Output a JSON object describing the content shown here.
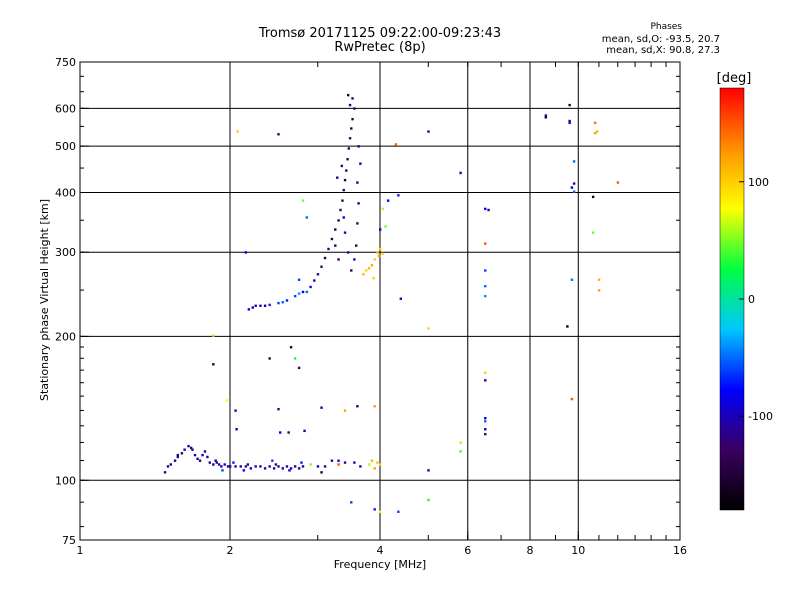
{
  "header": {
    "title_line1": "Tromsø 20171125 09:22:00-09:23:43",
    "title_line2": "RwPretec (8p)",
    "phase_title": "Phases",
    "phase_o": "mean, sd,O: -93.5, 20.7",
    "phase_x": "mean, sd,X:  90.8, 27.3"
  },
  "chart_data": {
    "type": "scatter",
    "title": "Tromsø 20171125 09:22:00-09:23:43",
    "subtitle": "RwPretec (8p)",
    "xlabel": "Frequency [MHz]",
    "ylabel": "Stationary phase Virtual Height [km]",
    "x_scale": "log",
    "y_scale": "log",
    "xlim": [
      1,
      16
    ],
    "ylim": [
      75,
      750
    ],
    "x_ticks": [
      1,
      2,
      4,
      6,
      8,
      10,
      16
    ],
    "x_tick_labels": [
      "1",
      "2",
      "4",
      "6",
      "8",
      "10",
      "16"
    ],
    "x_grid": [
      2,
      4,
      6,
      8,
      10
    ],
    "y_ticks": [
      75,
      100,
      200,
      300,
      400,
      500,
      600,
      750
    ],
    "y_tick_labels": [
      "75",
      "100",
      "200",
      "300",
      "400",
      "500",
      "600",
      "750"
    ],
    "y_grid": [
      100,
      200,
      300,
      400,
      500,
      600
    ],
    "grid": true,
    "colorbar": {
      "label": "[deg]",
      "range": [
        -180,
        180
      ],
      "ticks": [
        -100,
        0,
        100
      ],
      "tick_labels": [
        "-100",
        "0",
        "100"
      ],
      "colormap": "rainbow (black-purple-blue-cyan-green-yellow-orange-red)",
      "stops": [
        "#000000",
        "#3a0060",
        "#0000ff",
        "#00c8ff",
        "#00ff40",
        "#ffff00",
        "#ff9000",
        "#ff0000"
      ]
    },
    "points": [
      [
        1.48,
        104,
        -105
      ],
      [
        1.5,
        107,
        -110
      ],
      [
        1.52,
        108,
        -105
      ],
      [
        1.55,
        110,
        -110
      ],
      [
        1.57,
        112,
        -105
      ],
      [
        1.6,
        114,
        -110
      ],
      [
        1.62,
        116,
        -105
      ],
      [
        1.65,
        118,
        -100
      ],
      [
        1.68,
        116,
        -110
      ],
      [
        1.7,
        113,
        -105
      ],
      [
        1.72,
        111,
        -110
      ],
      [
        1.74,
        110,
        -105
      ],
      [
        1.76,
        113,
        -100
      ],
      [
        1.78,
        115,
        -110
      ],
      [
        1.8,
        112,
        -105
      ],
      [
        1.82,
        109,
        -110
      ],
      [
        1.85,
        108,
        -105
      ],
      [
        1.88,
        109,
        -100
      ],
      [
        1.9,
        108,
        -110
      ],
      [
        1.92,
        107,
        -105
      ],
      [
        1.95,
        108,
        -100
      ],
      [
        1.98,
        107,
        -110
      ],
      [
        2.0,
        107,
        -105
      ],
      [
        2.05,
        107,
        -100
      ],
      [
        2.1,
        107,
        -110
      ],
      [
        2.15,
        107,
        -105
      ],
      [
        2.2,
        106,
        -100
      ],
      [
        2.25,
        107,
        -110
      ],
      [
        2.3,
        107,
        -105
      ],
      [
        2.35,
        106,
        -100
      ],
      [
        2.4,
        107,
        -110
      ],
      [
        2.45,
        106,
        -105
      ],
      [
        2.5,
        107,
        -100
      ],
      [
        2.55,
        106,
        -110
      ],
      [
        2.6,
        107,
        -105
      ],
      [
        2.65,
        106,
        -100
      ],
      [
        2.7,
        107,
        -110
      ],
      [
        2.75,
        106,
        -105
      ],
      [
        2.8,
        107,
        -100
      ],
      [
        1.93,
        105,
        -60
      ],
      [
        2.03,
        109,
        -70
      ],
      [
        2.13,
        105,
        -80
      ],
      [
        2.43,
        110,
        -60
      ],
      [
        2.63,
        105,
        -80
      ],
      [
        2.78,
        109,
        -70
      ],
      [
        1.57,
        113,
        -130
      ],
      [
        1.67,
        117,
        -130
      ],
      [
        1.87,
        110,
        -130
      ],
      [
        2.17,
        108,
        -130
      ],
      [
        2.47,
        108,
        -130
      ],
      [
        2.06,
        128,
        -100
      ],
      [
        2.52,
        126,
        -80
      ],
      [
        2.62,
        126,
        -130
      ],
      [
        2.82,
        127,
        -100
      ],
      [
        3.0,
        107,
        -100
      ],
      [
        3.1,
        107,
        -110
      ],
      [
        3.2,
        110,
        -105
      ],
      [
        3.3,
        110,
        -100
      ],
      [
        3.4,
        109,
        -110
      ],
      [
        3.55,
        109,
        -105
      ],
      [
        3.65,
        107,
        -100
      ],
      [
        3.8,
        108,
        60
      ],
      [
        3.85,
        110,
        110
      ],
      [
        3.9,
        106,
        120
      ],
      [
        3.95,
        109,
        105
      ],
      [
        4.0,
        108,
        95
      ],
      [
        2.9,
        108,
        50
      ],
      [
        3.05,
        104,
        -150
      ],
      [
        3.3,
        108,
        150
      ],
      [
        3.5,
        90,
        -60
      ],
      [
        3.9,
        87,
        -70
      ],
      [
        4.0,
        86,
        80
      ],
      [
        4.35,
        86,
        -60
      ],
      [
        5.0,
        91,
        30
      ],
      [
        5.0,
        105,
        -110
      ],
      [
        5.8,
        115,
        40
      ],
      [
        5.8,
        120,
        60
      ],
      [
        6.5,
        125,
        -120
      ],
      [
        6.5,
        128,
        -100
      ],
      [
        6.5,
        133,
        -50
      ],
      [
        6.5,
        135,
        -90
      ],
      [
        6.5,
        162,
        -120
      ],
      [
        6.5,
        168,
        100
      ],
      [
        6.5,
        243,
        -40
      ],
      [
        6.5,
        255,
        -50
      ],
      [
        6.5,
        275,
        -60
      ],
      [
        6.5,
        313,
        150
      ],
      [
        6.5,
        370,
        -80
      ],
      [
        6.6,
        368,
        -120
      ],
      [
        2.15,
        300,
        -80
      ],
      [
        2.18,
        228,
        -100
      ],
      [
        2.22,
        230,
        -90
      ],
      [
        2.3,
        232,
        -80
      ],
      [
        2.4,
        233,
        -70
      ],
      [
        2.5,
        235,
        -60
      ],
      [
        2.6,
        238,
        -70
      ],
      [
        2.7,
        243,
        -60
      ],
      [
        2.8,
        248,
        -80
      ],
      [
        2.9,
        254,
        -90
      ],
      [
        2.95,
        262,
        -110
      ],
      [
        3.0,
        270,
        -120
      ],
      [
        3.05,
        280,
        -130
      ],
      [
        3.1,
        292,
        -140
      ],
      [
        3.15,
        305,
        -130
      ],
      [
        3.2,
        320,
        -150
      ],
      [
        2.25,
        232,
        -120
      ],
      [
        2.35,
        232,
        -130
      ],
      [
        2.55,
        236,
        -50
      ],
      [
        2.75,
        246,
        -40
      ],
      [
        2.85,
        248,
        -50
      ],
      [
        2.75,
        263,
        -60
      ],
      [
        3.25,
        335,
        -150
      ],
      [
        3.3,
        350,
        -140
      ],
      [
        3.33,
        368,
        -130
      ],
      [
        3.36,
        385,
        -140
      ],
      [
        3.38,
        405,
        -130
      ],
      [
        3.4,
        425,
        -150
      ],
      [
        3.42,
        445,
        -140
      ],
      [
        3.44,
        470,
        -130
      ],
      [
        3.46,
        495,
        -140
      ],
      [
        3.48,
        520,
        -130
      ],
      [
        3.5,
        545,
        -150
      ],
      [
        3.52,
        570,
        -140
      ],
      [
        3.48,
        610,
        -120
      ],
      [
        3.45,
        640,
        -150
      ],
      [
        3.52,
        630,
        -130
      ],
      [
        3.55,
        600,
        -140
      ],
      [
        3.35,
        455,
        -120
      ],
      [
        3.28,
        430,
        -100
      ],
      [
        3.6,
        420,
        -110
      ],
      [
        3.62,
        380,
        -120
      ],
      [
        3.6,
        345,
        -130
      ],
      [
        3.58,
        310,
        -140
      ],
      [
        3.55,
        290,
        -110
      ],
      [
        3.5,
        275,
        -130
      ],
      [
        3.45,
        300,
        -100
      ],
      [
        3.4,
        330,
        -120
      ],
      [
        3.38,
        355,
        -90
      ],
      [
        3.3,
        290,
        -130
      ],
      [
        3.25,
        310,
        -120
      ],
      [
        3.65,
        460,
        -120
      ],
      [
        3.62,
        500,
        -110
      ],
      [
        3.7,
        270,
        110
      ],
      [
        3.75,
        275,
        100
      ],
      [
        3.8,
        278,
        110
      ],
      [
        3.85,
        282,
        120
      ],
      [
        3.9,
        290,
        100
      ],
      [
        3.95,
        300,
        110
      ],
      [
        4.0,
        305,
        100
      ],
      [
        4.05,
        298,
        90
      ],
      [
        3.88,
        265,
        100
      ],
      [
        3.98,
        295,
        130
      ],
      [
        4.0,
        335,
        -100
      ],
      [
        4.05,
        370,
        60
      ],
      [
        4.1,
        340,
        50
      ],
      [
        4.15,
        385,
        -80
      ],
      [
        4.3,
        505,
        140
      ],
      [
        4.35,
        395,
        -70
      ],
      [
        4.4,
        240,
        -90
      ],
      [
        5.0,
        208,
        100
      ],
      [
        5.0,
        537,
        -120
      ],
      [
        5.8,
        440,
        -110
      ],
      [
        2.07,
        537,
        100
      ],
      [
        2.5,
        530,
        -120
      ],
      [
        2.8,
        385,
        50
      ],
      [
        2.85,
        355,
        -50
      ],
      [
        2.65,
        190,
        -150
      ],
      [
        2.7,
        180,
        30
      ],
      [
        2.75,
        172,
        -130
      ],
      [
        2.4,
        180,
        -140
      ],
      [
        1.85,
        201,
        100
      ],
      [
        1.85,
        175,
        -150
      ],
      [
        1.97,
        147,
        80
      ],
      [
        2.05,
        140,
        -110
      ],
      [
        2.5,
        141,
        -120
      ],
      [
        3.05,
        142,
        -110
      ],
      [
        3.6,
        143,
        -110
      ],
      [
        3.9,
        143,
        120
      ],
      [
        3.4,
        140,
        120
      ],
      [
        8.6,
        580,
        -110
      ],
      [
        8.6,
        575,
        -150
      ],
      [
        9.6,
        610,
        -150
      ],
      [
        9.6,
        565,
        -110
      ],
      [
        9.6,
        560,
        -110
      ],
      [
        10.8,
        560,
        140
      ],
      [
        10.9,
        537,
        110
      ],
      [
        10.8,
        533,
        120
      ],
      [
        9.8,
        465,
        -50
      ],
      [
        9.8,
        418,
        -100
      ],
      [
        9.7,
        410,
        -110
      ],
      [
        10.7,
        392,
        -160
      ],
      [
        10.7,
        330,
        50
      ],
      [
        9.8,
        402,
        -50
      ],
      [
        9.7,
        263,
        -50
      ],
      [
        11.0,
        263,
        110
      ],
      [
        11.0,
        250,
        120
      ],
      [
        9.5,
        210,
        -170
      ],
      [
        9.7,
        148,
        150
      ],
      [
        12.0,
        420,
        150
      ]
    ]
  }
}
